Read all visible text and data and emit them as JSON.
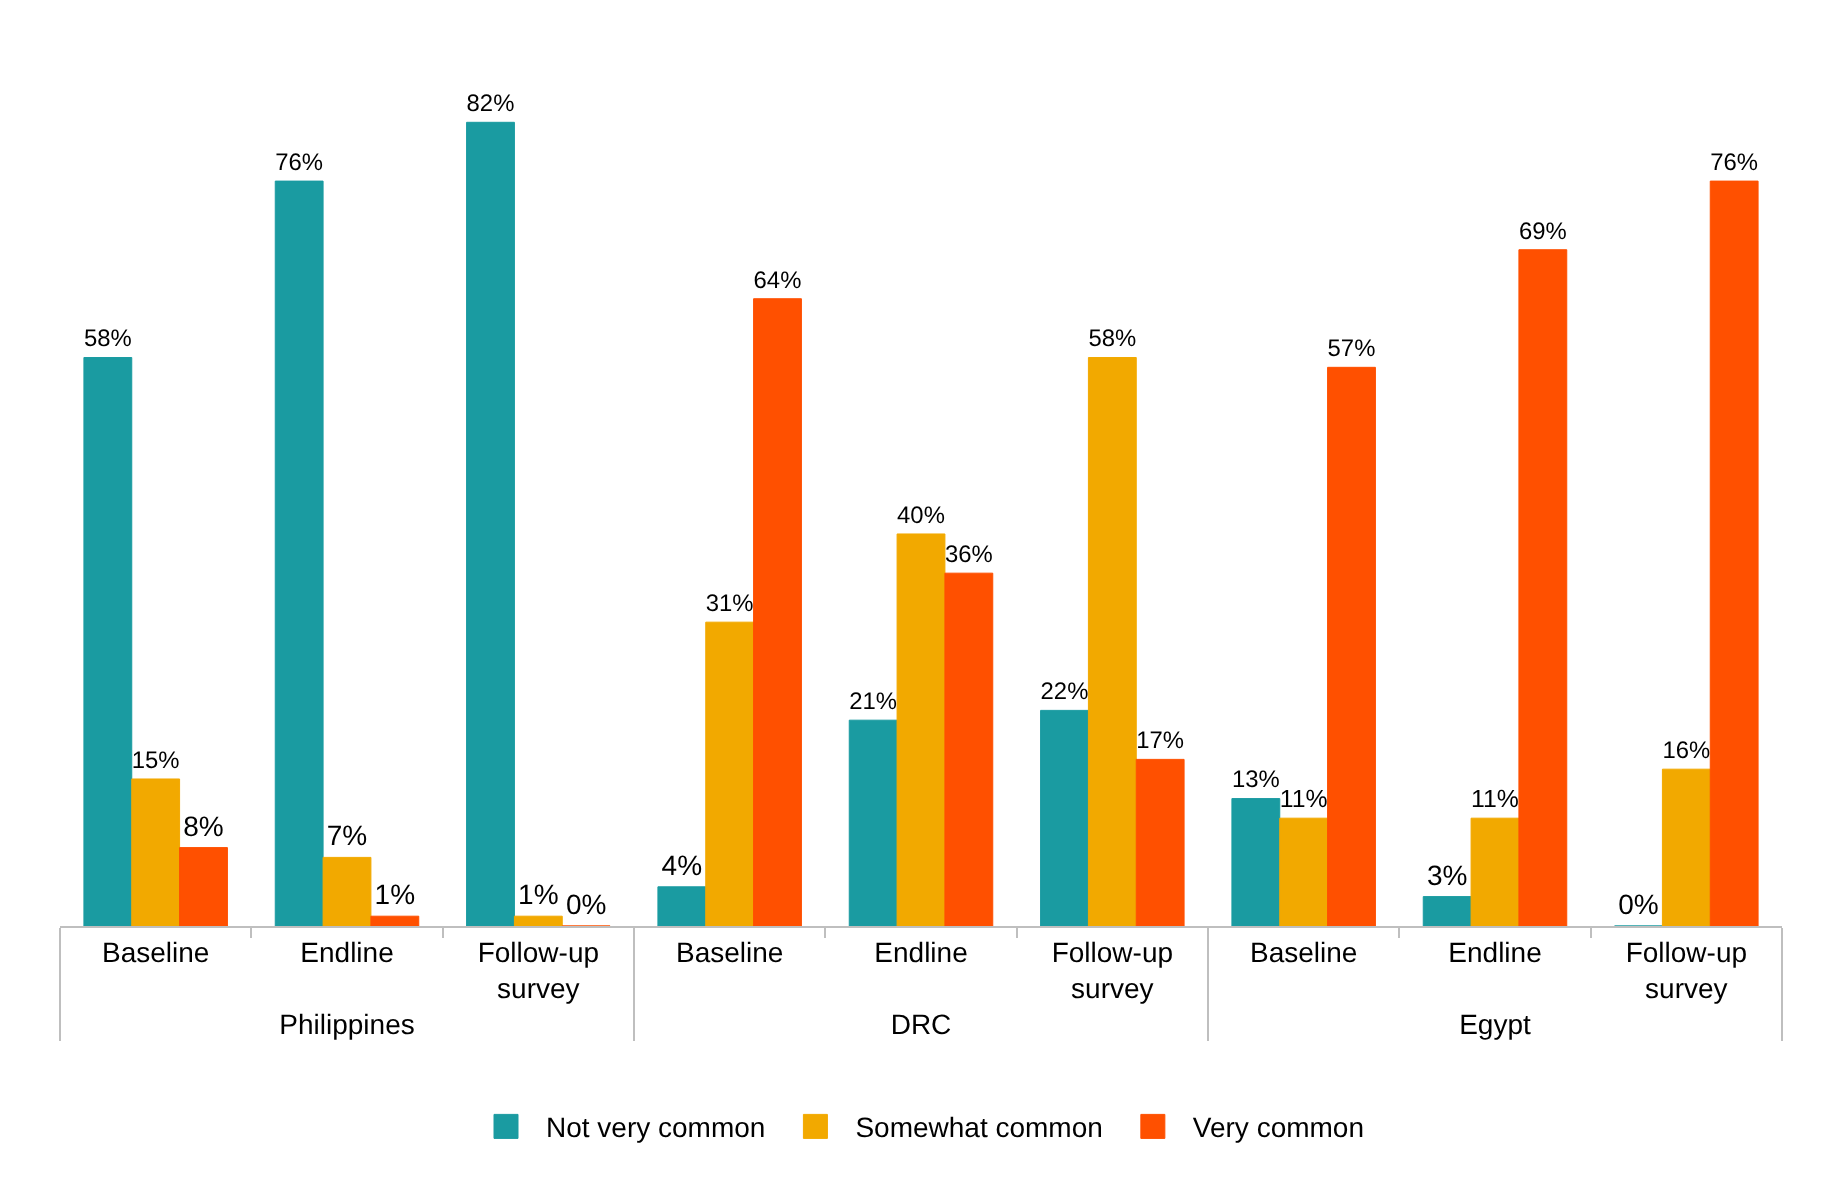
{
  "chart_data": {
    "type": "bar",
    "categories": [
      "Baseline",
      "Endline",
      "Follow-up survey",
      "Baseline",
      "Endline",
      "Follow-up survey",
      "Baseline",
      "Endline",
      "Follow-up survey"
    ],
    "annotations": [
      "Philippines",
      "DRC",
      "Egypt"
    ],
    "series": [
      {
        "name": "Not very common",
        "color": "#1a9ba1",
        "values": [
          58,
          76,
          82,
          4,
          21,
          22,
          13,
          3,
          0
        ],
        "value_labels": [
          "58%",
          "76%",
          "82%",
          "4%",
          "21%",
          "22%",
          "13%",
          "3%",
          "0%"
        ]
      },
      {
        "name": "Somewhat common",
        "color": "#f2a900",
        "values": [
          15,
          7,
          1,
          31,
          40,
          58,
          11,
          11,
          16
        ],
        "value_labels": [
          "15%",
          "7%",
          "1%",
          "31%",
          "40%",
          "58%",
          "11%",
          "11%",
          "16%"
        ]
      },
      {
        "name": "Very common",
        "color": "#ff5000",
        "values": [
          8,
          1,
          0,
          64,
          36,
          17,
          57,
          69,
          76
        ],
        "value_labels": [
          "8%",
          "1%",
          "0%",
          "64%",
          "36%",
          "17%",
          "57%",
          "69%",
          "76%"
        ]
      }
    ],
    "legend": "bottom",
    "grid": false
  }
}
